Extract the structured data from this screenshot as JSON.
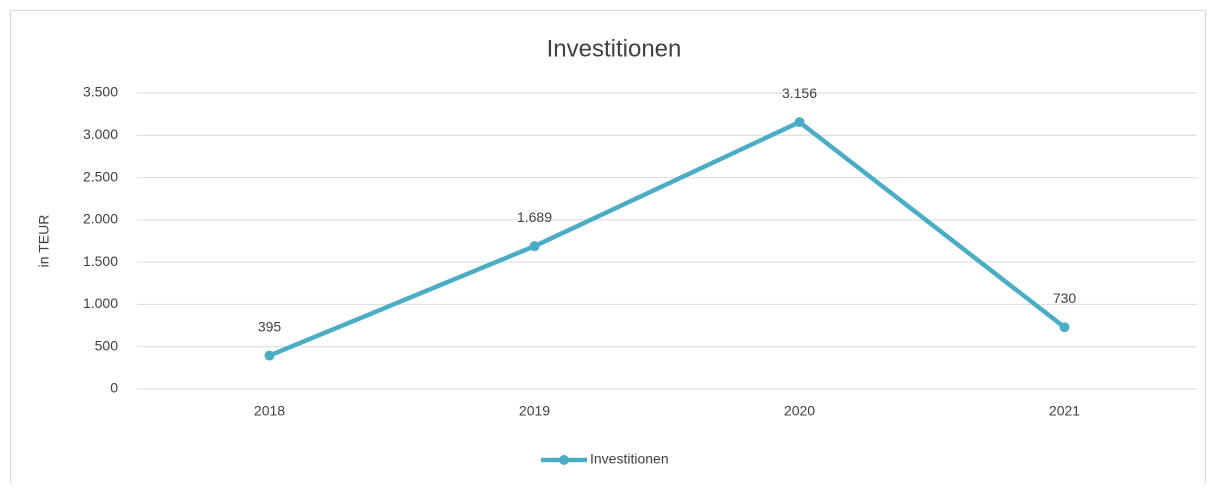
{
  "chart_data": {
    "type": "line",
    "title": "Investitionen",
    "y_label": "in TEUR",
    "categories": [
      "2018",
      "2019",
      "2020",
      "2021"
    ],
    "series": [
      {
        "name": "Investitionen",
        "color": "#4bacc6",
        "values": [
          395,
          1689,
          3156,
          730
        ],
        "value_labels": [
          "395",
          "1.689",
          "3.156",
          "730"
        ]
      }
    ],
    "ylim": [
      0,
      3500
    ],
    "yticks": [
      0,
      500,
      {
        "value": 1000,
        "label": "1.000"
      },
      {
        "value": 1500,
        "label": "1.500"
      },
      {
        "value": 2000,
        "label": "2.000"
      },
      {
        "value": 2500,
        "label": "2.500"
      },
      {
        "value": 3000,
        "label": "3.000"
      },
      {
        "value": 3500,
        "label": "3.500"
      }
    ],
    "grid": true,
    "legend": "bottom"
  }
}
